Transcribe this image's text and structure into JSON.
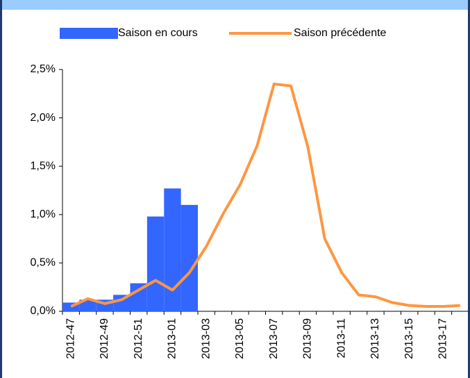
{
  "chart_data": {
    "type": "bar-line",
    "categories": [
      "2012-47",
      null,
      "2012-49",
      null,
      "2012-51",
      null,
      "2013-01",
      null,
      "2013-03",
      null,
      "2013-05",
      null,
      "2013-07",
      null,
      "2013-09",
      null,
      "2013-11",
      null,
      "2013-13",
      null,
      "2013-15",
      null,
      "2013-17",
      null
    ],
    "series": [
      {
        "name": "Saison en cours",
        "type": "bar",
        "color": "#3366ff",
        "values": [
          0.09,
          0.12,
          0.12,
          0.17,
          0.29,
          0.98,
          1.27,
          1.1,
          null,
          null,
          null,
          null,
          null,
          null,
          null,
          null,
          null,
          null,
          null,
          null,
          null,
          null,
          null,
          null
        ]
      },
      {
        "name": "Saison précédente",
        "type": "line",
        "color": "#ff9640",
        "values": [
          0.05,
          0.13,
          0.08,
          0.12,
          0.22,
          0.32,
          0.22,
          0.4,
          0.67,
          1.01,
          1.31,
          1.71,
          2.35,
          2.33,
          1.7,
          0.75,
          0.4,
          0.17,
          0.15,
          0.09,
          0.06,
          0.05,
          0.05,
          0.06
        ]
      }
    ],
    "ylim": [
      0,
      2.5
    ],
    "yticks": [
      {
        "value": 0,
        "label": "0,0%"
      },
      {
        "value": 0.5,
        "label": "0,5%"
      },
      {
        "value": 1,
        "label": "1,0%"
      },
      {
        "value": 1.5,
        "label": "1,5%"
      },
      {
        "value": 2,
        "label": "2,0%"
      },
      {
        "value": 2.5,
        "label": "2,5%"
      }
    ],
    "grid": false
  }
}
